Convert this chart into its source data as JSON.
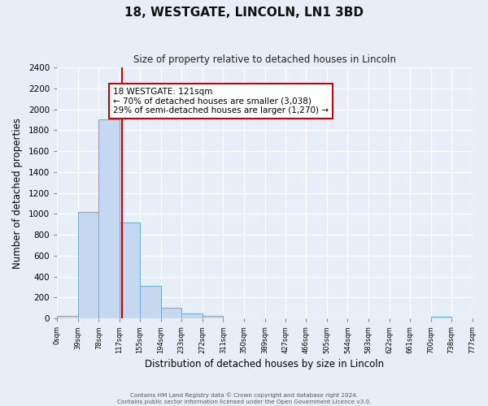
{
  "title": "18, WESTGATE, LINCOLN, LN1 3BD",
  "subtitle": "Size of property relative to detached houses in Lincoln",
  "xlabel": "Distribution of detached houses by size in Lincoln",
  "ylabel": "Number of detached properties",
  "bin_edges": [
    0,
    39,
    78,
    117,
    155,
    194,
    233,
    272,
    311,
    350,
    389,
    427,
    466,
    505,
    544,
    583,
    622,
    661,
    700,
    738,
    777
  ],
  "bar_heights": [
    20,
    1020,
    1900,
    920,
    310,
    105,
    50,
    20,
    0,
    0,
    0,
    0,
    0,
    0,
    0,
    0,
    0,
    0,
    15,
    0
  ],
  "bar_color": "#c5d8ef",
  "bar_edgecolor": "#6aaad4",
  "property_line_x": 121,
  "property_line_color": "#cc0000",
  "annotation_text_line1": "18 WESTGATE: 121sqm",
  "annotation_text_line2": "← 70% of detached houses are smaller (3,038)",
  "annotation_text_line3": "29% of semi-detached houses are larger (1,270) →",
  "annotation_box_facecolor": "#ffffff",
  "annotation_box_edgecolor": "#cc0000",
  "ylim": [
    0,
    2400
  ],
  "yticks": [
    0,
    200,
    400,
    600,
    800,
    1000,
    1200,
    1400,
    1600,
    1800,
    2000,
    2200,
    2400
  ],
  "tick_labels": [
    "0sqm",
    "39sqm",
    "78sqm",
    "117sqm",
    "155sqm",
    "194sqm",
    "233sqm",
    "272sqm",
    "311sqm",
    "350sqm",
    "389sqm",
    "427sqm",
    "466sqm",
    "505sqm",
    "544sqm",
    "583sqm",
    "622sqm",
    "661sqm",
    "700sqm",
    "738sqm",
    "777sqm"
  ],
  "background_color": "#e8eef7",
  "grid_color": "#ffffff",
  "footer_line1": "Contains HM Land Registry data © Crown copyright and database right 2024.",
  "footer_line2": "Contains public sector information licensed under the Open Government Licence v3.0."
}
